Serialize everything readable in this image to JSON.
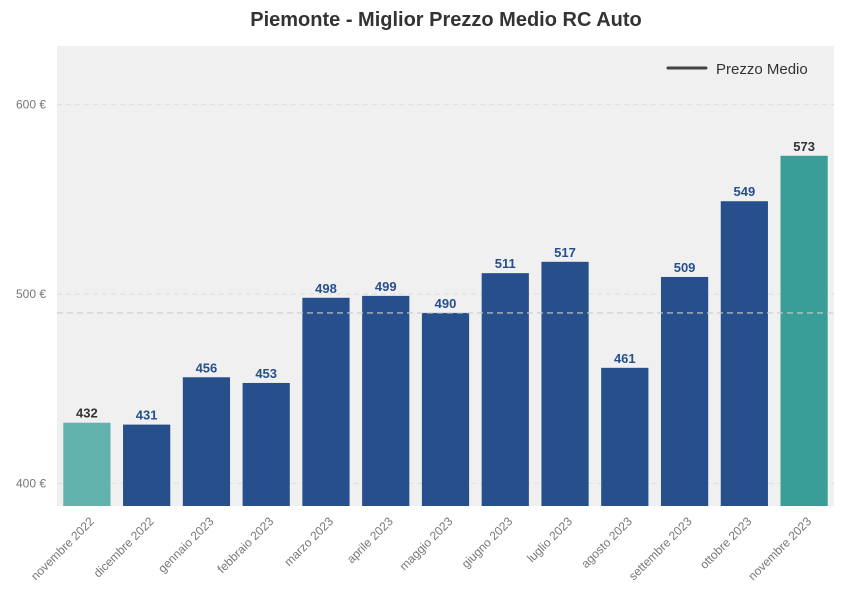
{
  "chart_data": {
    "type": "bar",
    "title": "Piemonte - Miglior Prezzo Medio RC Auto",
    "xlabel": "",
    "ylabel": "",
    "categories": [
      "novembre 2022",
      "dicembre 2022",
      "gennaio 2023",
      "febbraio 2023",
      "marzo 2023",
      "aprile 2023",
      "maggio 2023",
      "giugno 2023",
      "luglio 2023",
      "agosto 2023",
      "settembre 2023",
      "ottobre 2023",
      "novembre 2023"
    ],
    "values": [
      432,
      431,
      456,
      453,
      498,
      499,
      490,
      511,
      517,
      461,
      509,
      549,
      573
    ],
    "value_labels": [
      "432",
      "431",
      "456",
      "453",
      "498",
      "499",
      "490",
      "511",
      "517",
      "461",
      "509",
      "549",
      "573"
    ],
    "bar_colors": [
      "#62b2ae",
      "#264f8c",
      "#264f8c",
      "#264f8c",
      "#264f8c",
      "#264f8c",
      "#264f8c",
      "#264f8c",
      "#264f8c",
      "#264f8c",
      "#264f8c",
      "#264f8c",
      "#3a9e98"
    ],
    "label_colors": [
      "#333333",
      "#264f8c",
      "#264f8c",
      "#264f8c",
      "#264f8c",
      "#264f8c",
      "#264f8c",
      "#264f8c",
      "#264f8c",
      "#264f8c",
      "#264f8c",
      "#264f8c",
      "#333333"
    ],
    "ylim": [
      388,
      631
    ],
    "yticks": [
      400,
      500,
      600
    ],
    "ytick_labels": [
      "400 €",
      "500 €",
      "600 €"
    ],
    "reference_line": {
      "name": "Prezzo Medio",
      "value": 490
    },
    "legend": {
      "position": "top-right",
      "entries": [
        "Prezzo Medio"
      ]
    },
    "grid": true
  }
}
